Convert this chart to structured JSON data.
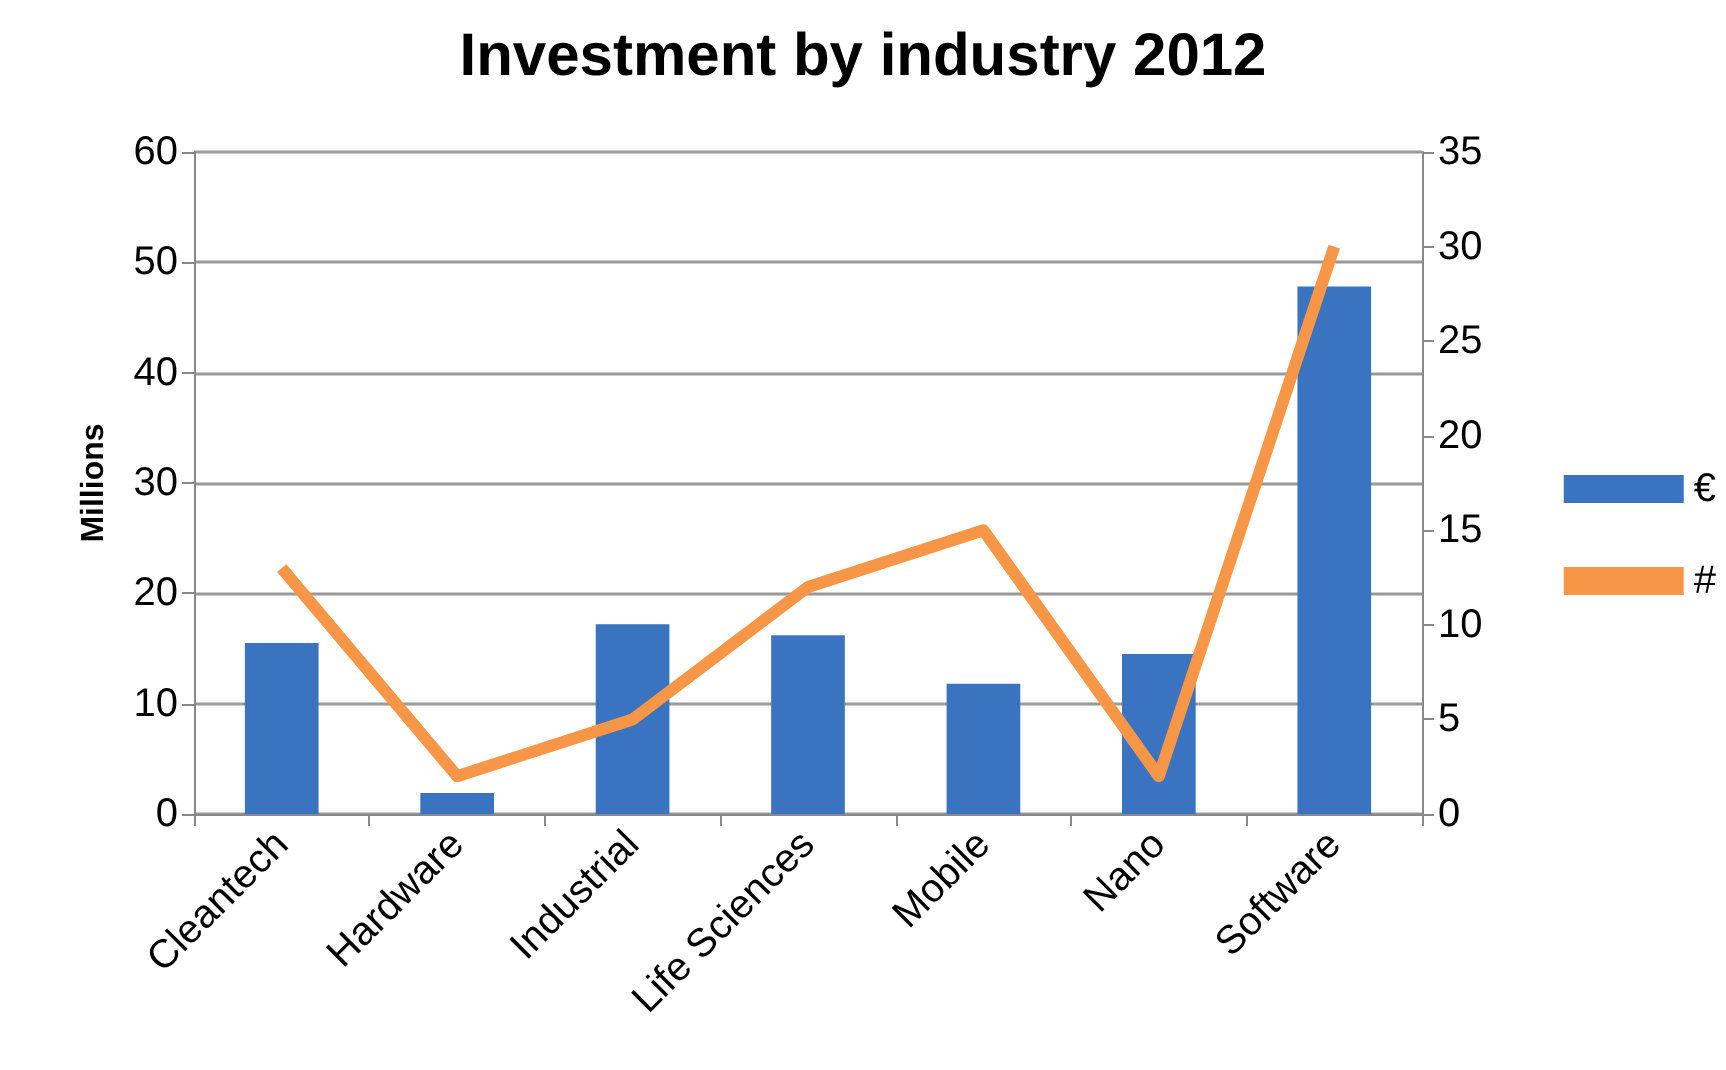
{
  "chart_data": {
    "type": "bar",
    "title": "Investment by industry 2012",
    "ylabel": "Millions",
    "categories": [
      "Cleantech",
      "Hardware",
      "Industrial",
      "Life Sciences",
      "Mobile",
      "Nano",
      "Software"
    ],
    "series": [
      {
        "name": "€",
        "color": "#3a74c0",
        "values": [
          15.5,
          1.9,
          17.2,
          16.2,
          11.8,
          14.5,
          47.8
        ]
      },
      {
        "name": "#",
        "type": "line",
        "axis": "y2",
        "color": "#f79646",
        "values": [
          13,
          2,
          5,
          12,
          15,
          2,
          30
        ]
      }
    ],
    "ylim": [
      0,
      60
    ],
    "yticks": [
      0,
      10,
      20,
      30,
      40,
      50,
      60
    ],
    "y2lim": [
      0,
      35
    ],
    "y2ticks": [
      0,
      5,
      10,
      15,
      20,
      25,
      30,
      35
    ],
    "grid": "y",
    "legend": "right",
    "marker": "none"
  }
}
